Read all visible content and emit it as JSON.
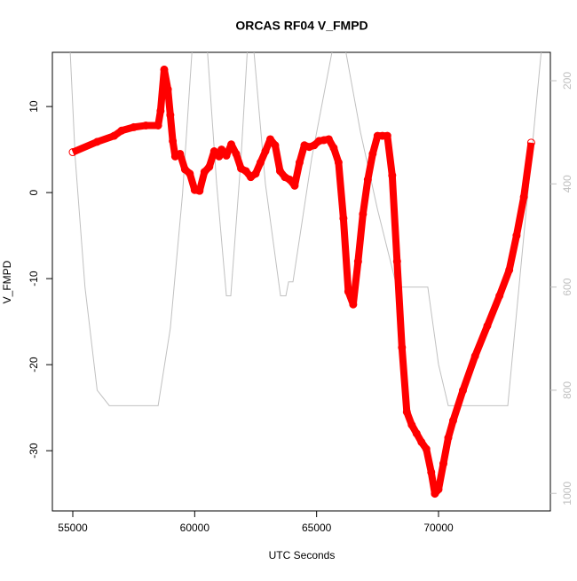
{
  "chart_data": {
    "type": "scatter",
    "title": "ORCAS RF04 V_FMPD",
    "x_label": "UTC Seconds",
    "y_label": "V_FMPD",
    "xlim": [
      54163,
      74587
    ],
    "xticks": [
      55000,
      60000,
      65000,
      70000
    ],
    "ylim": [
      -37.0,
      16.3
    ],
    "yticks": [
      -30,
      -20,
      -10,
      0,
      10
    ],
    "y2lim": [
      1034,
      145
    ],
    "y2ticks": [
      200,
      400,
      600,
      800,
      1000
    ],
    "series": [
      {
        "color": "#ff0000",
        "x": [
          55000,
          56000,
          56700,
          57000,
          57500,
          58000,
          58500,
          58600,
          58750,
          58900,
          59000,
          59100,
          59200,
          59400,
          59600,
          59800,
          60000,
          60200,
          60400,
          60600,
          60800,
          61000,
          61100,
          61300,
          61500,
          61700,
          61900,
          62100,
          62300,
          62500,
          62700,
          62900,
          63100,
          63300,
          63500,
          63700,
          63900,
          64100,
          64300,
          64500,
          64700,
          64900,
          65100,
          65300,
          65500,
          65700,
          65900,
          66100,
          66300,
          66500,
          66700,
          66900,
          67100,
          67300,
          67500,
          67700,
          67900,
          68100,
          68300,
          68500,
          68700,
          68900,
          69100,
          69300,
          69500,
          69700,
          69850,
          70000,
          70200,
          70400,
          70600,
          71000,
          71500,
          72000,
          72500,
          72900,
          73200,
          73500,
          73800
        ],
        "values": [
          4.7,
          5.9,
          6.6,
          7.2,
          7.6,
          7.8,
          7.8,
          9.5,
          14.3,
          12,
          9,
          6,
          4.2,
          4.5,
          2.7,
          2.2,
          0.3,
          0.2,
          2.4,
          3.0,
          4.8,
          4.2,
          5.0,
          4.3,
          5.6,
          4.5,
          2.8,
          2.5,
          1.8,
          2.2,
          3.5,
          4.8,
          6.2,
          5.5,
          2.5,
          1.8,
          1.5,
          0.8,
          3.5,
          5.5,
          5.3,
          5.5,
          6.0,
          6.1,
          6.2,
          5.2,
          3.5,
          -3,
          -11.5,
          -13.0,
          -8,
          -2.5,
          1.5,
          4.5,
          6.6,
          6.6,
          6.6,
          2,
          -8,
          -18,
          -25.5,
          -27,
          -28,
          -29,
          -29.8,
          -32.5,
          -35,
          -34.5,
          -31.5,
          -28.5,
          -26.5,
          -23,
          -19,
          -15.5,
          -12,
          -9,
          -5,
          -0.5,
          5.8
        ]
      },
      {
        "color": "#c0c0c0",
        "axis": "y2",
        "x": [
          54850,
          55100,
          55500,
          56000,
          56500,
          58500,
          59000,
          59500,
          59950,
          60460,
          60900,
          61300,
          61480,
          61900,
          62210,
          62350,
          62900,
          63520,
          63740,
          63850,
          64030,
          64800,
          65810,
          66030,
          66800,
          67500,
          68290,
          69560,
          70000,
          70400,
          72840,
          73600,
          74300
        ],
        "values": [
          100,
          350,
          600,
          800,
          830,
          830,
          680,
          420,
          100,
          100,
          400,
          617,
          617,
          350,
          100,
          100,
          400,
          617,
          617,
          590,
          590,
          350,
          100,
          100,
          300,
          450,
          600,
          600,
          750,
          830,
          830,
          450,
          100
        ]
      }
    ]
  }
}
